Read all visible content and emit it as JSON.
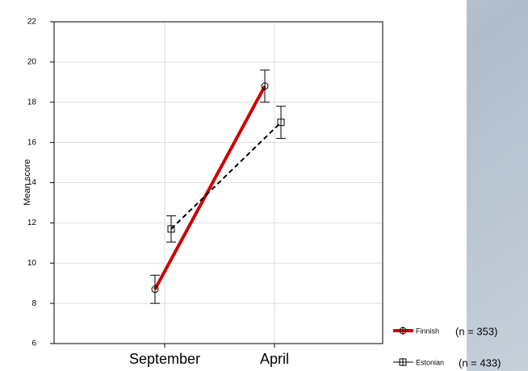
{
  "chart_data": {
    "type": "line",
    "ylabel": "Mean score",
    "categories": [
      "September",
      "April"
    ],
    "series": [
      {
        "name": "Finnish",
        "n_label": "(n = 353)",
        "color": "#cc0000",
        "marker": "circle",
        "dashed": false,
        "values": [
          8.7,
          18.8
        ],
        "errors": [
          0.7,
          0.8
        ]
      },
      {
        "name": "Estonian",
        "n_label": "(n = 433)",
        "color": "#000000",
        "marker": "square",
        "dashed": true,
        "values": [
          11.7,
          17.0
        ],
        "errors": [
          0.65,
          0.8
        ]
      }
    ],
    "ylim": [
      6,
      22
    ],
    "yticks": [
      6,
      8,
      10,
      12,
      14,
      16,
      18,
      20,
      22
    ],
    "grid": true
  }
}
